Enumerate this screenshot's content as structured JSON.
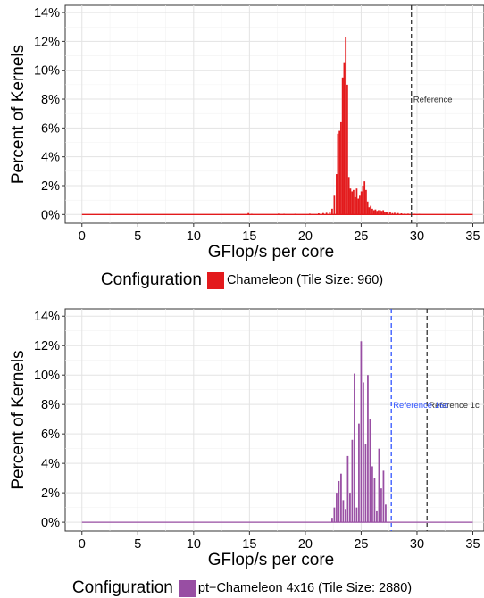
{
  "chart_data": [
    {
      "type": "bar",
      "xlabel": "GFlop/s per core",
      "ylabel": "Percent of Kernels",
      "xlim": [
        -1.5,
        36
      ],
      "ylim": [
        -0.6,
        14.5
      ],
      "x_ticks": [
        0,
        5,
        10,
        15,
        20,
        25,
        30,
        35
      ],
      "y_ticks": [
        0,
        2,
        4,
        6,
        8,
        10,
        12,
        14
      ],
      "y_tick_labels": [
        "0%",
        "2%",
        "4%",
        "6%",
        "8%",
        "10%",
        "12%",
        "14%"
      ],
      "grid": true,
      "color": "#e31a1c",
      "bin_width": 0.14,
      "baseline": [
        0,
        35
      ],
      "series": [
        {
          "name": "Chameleon (Tile Size: 960)",
          "x": [
            14.9,
            15.2,
            17.6,
            18.1,
            19.1,
            20.4,
            21.2,
            21.6,
            21.9,
            22.2,
            22.4,
            22.6,
            22.8,
            22.92,
            23.06,
            23.2,
            23.34,
            23.48,
            23.62,
            23.76,
            23.9,
            24.04,
            24.18,
            24.32,
            24.46,
            24.6,
            24.74,
            24.88,
            25.02,
            25.16,
            25.3,
            25.44,
            25.58,
            25.72,
            25.86,
            26.0,
            26.14,
            26.28,
            26.42,
            26.56,
            26.7,
            26.84,
            26.98,
            27.12,
            27.26,
            27.4,
            27.6,
            27.8,
            28.0,
            28.3,
            28.6,
            28.9,
            29.2,
            29.5,
            29.8,
            30.2
          ],
          "values": [
            0.1,
            0.05,
            0.06,
            0.05,
            0.05,
            0.06,
            0.08,
            0.1,
            0.12,
            0.2,
            0.4,
            1.3,
            2.8,
            5.6,
            5.8,
            6.4,
            9.5,
            10.5,
            12.3,
            9.0,
            2.6,
            1.8,
            1.6,
            1.7,
            1.2,
            1.8,
            1.1,
            1.3,
            1.6,
            2.0,
            2.3,
            1.7,
            0.9,
            0.5,
            0.6,
            0.4,
            0.3,
            0.35,
            0.25,
            0.3,
            0.3,
            0.25,
            0.3,
            0.2,
            0.15,
            0.2,
            0.15,
            0.1,
            0.12,
            0.1,
            0.08,
            0.06,
            0.06,
            0.05,
            0.05,
            0.04
          ]
        }
      ],
      "reference_lines": [
        {
          "x": 29.5,
          "label": "Reference",
          "color": "#333333"
        }
      ],
      "legend": {
        "title": "Configuration",
        "placement": "bottom",
        "items": [
          {
            "label": "Chameleon (Tile Size: 960)",
            "color": "#e31a1c"
          }
        ]
      }
    },
    {
      "type": "bar",
      "xlabel": "GFlop/s per core",
      "ylabel": "Percent of Kernels",
      "xlim": [
        -1.5,
        36
      ],
      "ylim": [
        -0.6,
        14.5
      ],
      "x_ticks": [
        0,
        5,
        10,
        15,
        20,
        25,
        30,
        35
      ],
      "y_ticks": [
        0,
        2,
        4,
        6,
        8,
        10,
        12,
        14
      ],
      "y_tick_labels": [
        "0%",
        "2%",
        "4%",
        "6%",
        "8%",
        "10%",
        "12%",
        "14%"
      ],
      "grid": true,
      "color": "#984ea3",
      "bin_width": 0.14,
      "baseline": [
        0,
        35
      ],
      "series": [
        {
          "name": "pt−Chameleon 4x16 (Tile Size: 2880)",
          "x": [
            22.4,
            22.6,
            22.8,
            23.0,
            23.2,
            23.4,
            23.6,
            23.8,
            24.0,
            24.2,
            24.4,
            24.6,
            24.8,
            25.0,
            25.2,
            25.4,
            25.6,
            25.8,
            26.0,
            26.2,
            26.4,
            26.6,
            26.8,
            27.0,
            27.2
          ],
          "values": [
            0.3,
            1.0,
            2.0,
            2.8,
            3.3,
            1.5,
            0.9,
            4.5,
            2.0,
            5.6,
            10.1,
            1.0,
            6.7,
            12.3,
            9.5,
            5.3,
            10.0,
            7.0,
            3.8,
            3.0,
            0.8,
            5.0,
            2.3,
            3.5,
            1.2
          ]
        }
      ],
      "reference_lines": [
        {
          "x": 30.9,
          "label": "Reference 1c",
          "color": "#333333"
        },
        {
          "x": 27.7,
          "label": "Reference 16c",
          "color": "#3355ff"
        }
      ],
      "legend": {
        "title": "Configuration",
        "placement": "bottom",
        "items": [
          {
            "label": "pt−Chameleon 4x16 (Tile Size: 2880)",
            "color": "#984ea3"
          }
        ]
      }
    }
  ]
}
